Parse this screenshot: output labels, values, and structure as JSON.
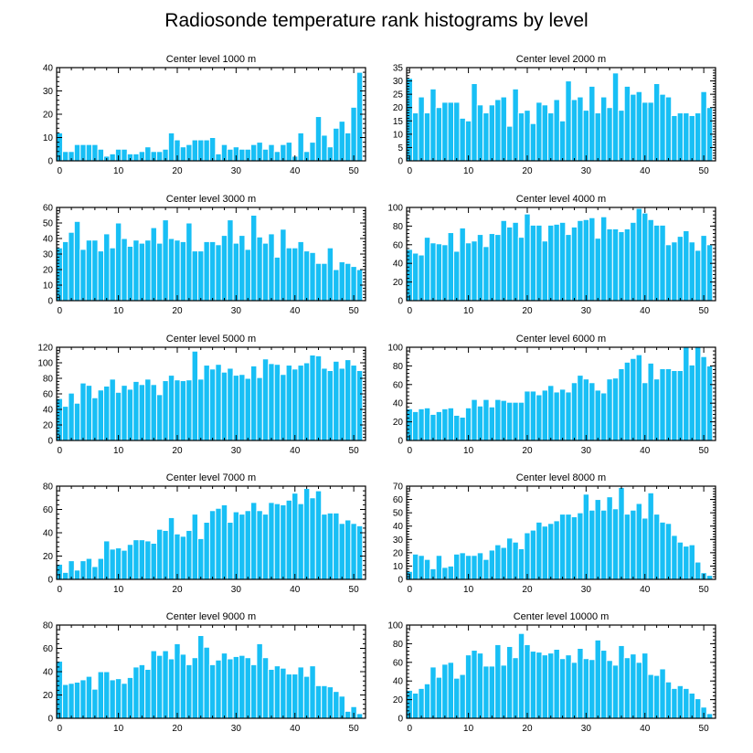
{
  "figure": {
    "title": "Radiosonde temperature rank histograms by level"
  },
  "colors": {
    "bar": "#18bff5",
    "bar_edge": "#ffffff",
    "axis": "#000000"
  },
  "chart_data": [
    {
      "type": "bar",
      "title": "Center level 1000 m",
      "x_start": 0,
      "xlim": [
        -0.5,
        52
      ],
      "xticks": [
        0,
        10,
        20,
        30,
        40,
        50
      ],
      "ylim": [
        0,
        40
      ],
      "yticks": [
        0,
        10,
        20,
        30,
        40
      ],
      "values": [
        12,
        4,
        4,
        7,
        7,
        7,
        7,
        5,
        2,
        3,
        5,
        5,
        3,
        3,
        4,
        6,
        4,
        4,
        5,
        12,
        9,
        6,
        7,
        9,
        9,
        9,
        10,
        3,
        7,
        5,
        6,
        5,
        5,
        7,
        8,
        5,
        7,
        4,
        7,
        8,
        2,
        12,
        4,
        8,
        19,
        11,
        6,
        14,
        17,
        12,
        23,
        38
      ]
    },
    {
      "type": "bar",
      "title": "Center level 2000 m",
      "x_start": 0,
      "xlim": [
        -0.5,
        52
      ],
      "xticks": [
        0,
        10,
        20,
        30,
        40,
        50
      ],
      "ylim": [
        0,
        35
      ],
      "yticks": [
        0,
        5,
        10,
        15,
        20,
        25,
        30,
        35
      ],
      "values": [
        31,
        18,
        24,
        18,
        27,
        20,
        22,
        22,
        22,
        16,
        15,
        29,
        21,
        18,
        21,
        23,
        24,
        13,
        27,
        18,
        19,
        14,
        22,
        21,
        18,
        23,
        15,
        30,
        23,
        24,
        19,
        28,
        18,
        24,
        20,
        33,
        19,
        28,
        25,
        26,
        22,
        22,
        29,
        25,
        24,
        17,
        18,
        18,
        17,
        18,
        26,
        20
      ]
    },
    {
      "type": "bar",
      "title": "Center level 3000 m",
      "x_start": 0,
      "xlim": [
        -0.5,
        52
      ],
      "xticks": [
        0,
        10,
        20,
        30,
        40,
        50
      ],
      "ylim": [
        0,
        60
      ],
      "yticks": [
        0,
        10,
        20,
        30,
        40,
        50,
        60
      ],
      "values": [
        34,
        38,
        44,
        51,
        33,
        39,
        39,
        32,
        43,
        34,
        50,
        40,
        35,
        39,
        37,
        39,
        47,
        37,
        52,
        40,
        39,
        38,
        50,
        32,
        32,
        38,
        38,
        36,
        42,
        52,
        37,
        42,
        33,
        55,
        41,
        37,
        43,
        28,
        46,
        34,
        34,
        38,
        32,
        31,
        24,
        24,
        34,
        20,
        25,
        24,
        22,
        20
      ]
    },
    {
      "type": "bar",
      "title": "Center level 4000 m",
      "x_start": 0,
      "xlim": [
        -0.5,
        52
      ],
      "xticks": [
        0,
        10,
        20,
        30,
        40,
        50
      ],
      "ylim": [
        0,
        100
      ],
      "yticks": [
        0,
        20,
        40,
        60,
        80,
        100
      ],
      "values": [
        55,
        51,
        49,
        68,
        62,
        61,
        60,
        73,
        53,
        78,
        62,
        64,
        71,
        58,
        72,
        71,
        86,
        79,
        84,
        68,
        93,
        81,
        81,
        64,
        81,
        82,
        84,
        71,
        79,
        86,
        87,
        89,
        67,
        90,
        77,
        77,
        74,
        77,
        84,
        99,
        94,
        87,
        81,
        81,
        60,
        63,
        69,
        75,
        63,
        54,
        70,
        60
      ]
    },
    {
      "type": "bar",
      "title": "Center level 5000 m",
      "x_start": 0,
      "xlim": [
        -0.5,
        52
      ],
      "xticks": [
        0,
        10,
        20,
        30,
        40,
        50
      ],
      "ylim": [
        0,
        120
      ],
      "yticks": [
        0,
        20,
        40,
        60,
        80,
        100,
        120
      ],
      "values": [
        54,
        44,
        61,
        48,
        74,
        71,
        55,
        65,
        70,
        79,
        62,
        71,
        66,
        76,
        72,
        79,
        72,
        59,
        77,
        84,
        78,
        77,
        78,
        115,
        79,
        97,
        92,
        98,
        88,
        93,
        84,
        85,
        80,
        96,
        81,
        105,
        99,
        98,
        85,
        97,
        92,
        97,
        100,
        110,
        109,
        93,
        90,
        102,
        93,
        104,
        97,
        90
      ]
    },
    {
      "type": "bar",
      "title": "Center level 6000 m",
      "x_start": 0,
      "xlim": [
        -0.5,
        52
      ],
      "xticks": [
        0,
        10,
        20,
        30,
        40,
        50
      ],
      "ylim": [
        0,
        100
      ],
      "yticks": [
        0,
        20,
        40,
        60,
        80,
        100
      ],
      "values": [
        34,
        31,
        34,
        35,
        28,
        31,
        34,
        35,
        27,
        25,
        35,
        44,
        37,
        44,
        36,
        44,
        43,
        41,
        41,
        41,
        53,
        53,
        49,
        54,
        59,
        52,
        55,
        52,
        62,
        70,
        66,
        62,
        54,
        51,
        66,
        67,
        77,
        84,
        88,
        92,
        62,
        83,
        66,
        77,
        77,
        75,
        75,
        100,
        81,
        100,
        90,
        80
      ]
    },
    {
      "type": "bar",
      "title": "Center level 7000 m",
      "x_start": 0,
      "xlim": [
        -0.5,
        52
      ],
      "xticks": [
        0,
        10,
        20,
        30,
        40,
        50
      ],
      "ylim": [
        0,
        80
      ],
      "yticks": [
        0,
        20,
        40,
        60,
        80
      ],
      "values": [
        13,
        6,
        16,
        8,
        16,
        18,
        11,
        18,
        33,
        26,
        27,
        25,
        30,
        34,
        34,
        33,
        31,
        43,
        42,
        53,
        39,
        37,
        42,
        56,
        35,
        49,
        59,
        61,
        64,
        49,
        58,
        56,
        59,
        66,
        59,
        56,
        66,
        65,
        64,
        68,
        74,
        65,
        78,
        70,
        76,
        56,
        57,
        57,
        48,
        51,
        48,
        46
      ]
    },
    {
      "type": "bar",
      "title": "Center level 8000 m",
      "x_start": 0,
      "xlim": [
        -0.5,
        52
      ],
      "xticks": [
        0,
        10,
        20,
        30,
        40,
        50
      ],
      "ylim": [
        0,
        70
      ],
      "yticks": [
        0,
        10,
        20,
        30,
        40,
        50,
        60,
        70
      ],
      "values": [
        6,
        19,
        18,
        15,
        8,
        18,
        9,
        10,
        19,
        20,
        18,
        18,
        20,
        15,
        22,
        26,
        24,
        31,
        28,
        23,
        35,
        37,
        43,
        40,
        42,
        44,
        49,
        49,
        47,
        50,
        64,
        52,
        60,
        52,
        62,
        53,
        69,
        49,
        52,
        57,
        46,
        65,
        49,
        43,
        42,
        33,
        28,
        25,
        26,
        13,
        5,
        3
      ]
    },
    {
      "type": "bar",
      "title": "Center level 9000 m",
      "x_start": 0,
      "xlim": [
        -0.5,
        52
      ],
      "xticks": [
        0,
        10,
        20,
        30,
        40,
        50
      ],
      "ylim": [
        0,
        80
      ],
      "yticks": [
        0,
        20,
        40,
        60,
        80
      ],
      "values": [
        49,
        29,
        30,
        31,
        33,
        36,
        25,
        40,
        40,
        33,
        34,
        30,
        35,
        44,
        46,
        42,
        58,
        54,
        58,
        51,
        64,
        55,
        46,
        52,
        71,
        61,
        46,
        50,
        56,
        51,
        53,
        54,
        52,
        46,
        64,
        52,
        42,
        45,
        43,
        38,
        38,
        44,
        36,
        45,
        28,
        28,
        27,
        23,
        19,
        6,
        10,
        4
      ]
    },
    {
      "type": "bar",
      "title": "Center level 10000 m",
      "x_start": 0,
      "xlim": [
        -0.5,
        52
      ],
      "xticks": [
        0,
        10,
        20,
        30,
        40,
        50
      ],
      "ylim": [
        0,
        100
      ],
      "yticks": [
        0,
        20,
        40,
        60,
        80,
        100
      ],
      "values": [
        30,
        27,
        32,
        37,
        55,
        44,
        58,
        60,
        43,
        47,
        68,
        73,
        70,
        56,
        56,
        79,
        57,
        77,
        65,
        91,
        79,
        72,
        71,
        68,
        70,
        74,
        64,
        68,
        60,
        75,
        64,
        63,
        84,
        73,
        62,
        57,
        78,
        65,
        69,
        60,
        70,
        47,
        46,
        53,
        39,
        32,
        35,
        32,
        27,
        21,
        12,
        5
      ]
    }
  ]
}
